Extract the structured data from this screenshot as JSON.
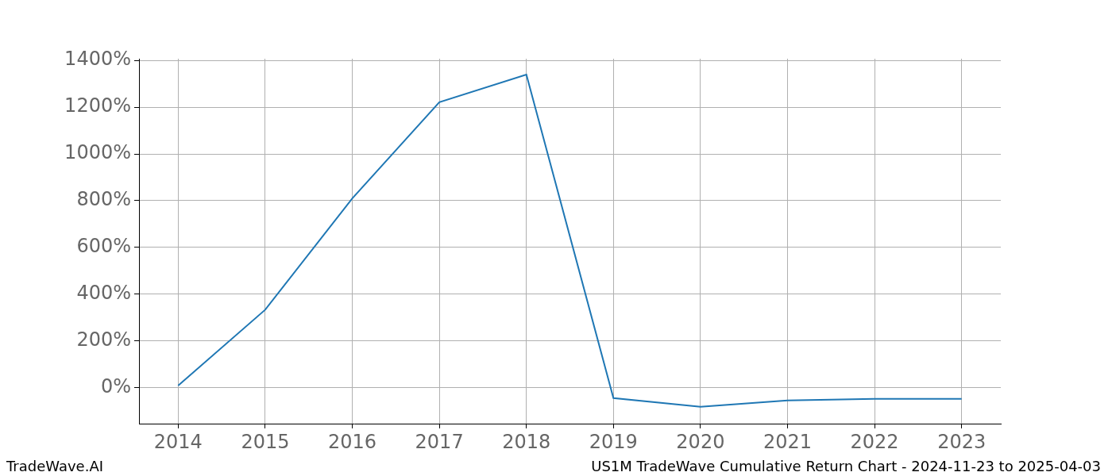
{
  "chart_data": {
    "type": "line",
    "title": "US1M TradeWave Cumulative Return Chart - 2024-11-23 to 2025-04-03",
    "annotations": [
      "TradeWave.AI"
    ],
    "x": [
      2014,
      2015,
      2016,
      2017,
      2018,
      2019,
      2020,
      2021,
      2022,
      2023
    ],
    "values": [
      10,
      334,
      810,
      1221,
      1339,
      -44,
      -81,
      -54,
      -47,
      -47
    ],
    "color": "#1f77b4",
    "xlim": [
      2013.55,
      2023.45
    ],
    "xticks": [
      2014,
      2015,
      2016,
      2017,
      2018,
      2019,
      2020,
      2021,
      2022,
      2023
    ],
    "ylim": [
      -153,
      1407
    ],
    "yticks": [
      {
        "value": 0,
        "label": "0%"
      },
      {
        "value": 200,
        "label": "200%"
      },
      {
        "value": 400,
        "label": "400%"
      },
      {
        "value": 600,
        "label": "600%"
      },
      {
        "value": 800,
        "label": "800%"
      },
      {
        "value": 1000,
        "label": "1000%"
      },
      {
        "value": 1200,
        "label": "1200%"
      },
      {
        "value": 1400,
        "label": "1400%"
      }
    ],
    "grid": true
  }
}
